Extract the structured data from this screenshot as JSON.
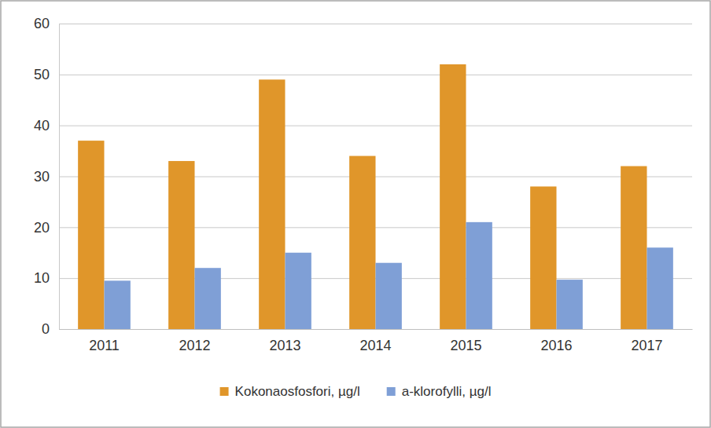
{
  "chart_data": {
    "type": "bar",
    "categories": [
      "2011",
      "2012",
      "2013",
      "2014",
      "2015",
      "2016",
      "2017"
    ],
    "series": [
      {
        "name": "Kokonaosfosfori, µg/l",
        "color": "#e0962a",
        "values": [
          37,
          33,
          49,
          34,
          52,
          28,
          32
        ]
      },
      {
        "name": "a-klorofylli, µg/l",
        "color": "#7f9fd6",
        "values": [
          9.5,
          12,
          15,
          13,
          21,
          9.7,
          16
        ]
      }
    ],
    "ylim": [
      0,
      60
    ],
    "yticks": [
      0,
      10,
      20,
      30,
      40,
      50,
      60
    ],
    "grid": true,
    "legend": "bottom"
  }
}
